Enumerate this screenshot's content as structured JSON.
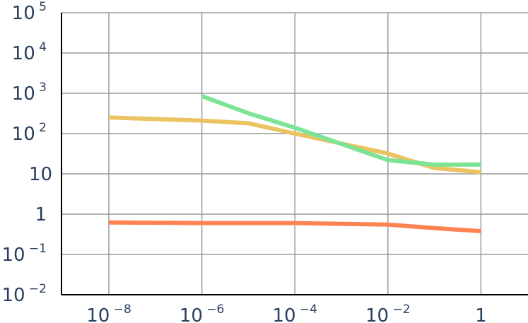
{
  "chart_data": {
    "type": "line",
    "title": "",
    "xlabel": "",
    "ylabel": "",
    "x_scale": "log",
    "y_scale": "log",
    "xlim": [
      3e-10,
      30
    ],
    "ylim": [
      0.01,
      100000
    ],
    "grid": true,
    "x_ticks": [
      {
        "value": 1e-08,
        "base": "10",
        "exp": "−8"
      },
      {
        "value": 1e-06,
        "base": "10",
        "exp": "−6"
      },
      {
        "value": 0.0001,
        "base": "10",
        "exp": "−4"
      },
      {
        "value": 0.01,
        "base": "10",
        "exp": "−2"
      },
      {
        "value": 1,
        "base": "1",
        "exp": ""
      }
    ],
    "y_ticks": [
      {
        "value": 0.01,
        "base": "10",
        "exp": "−2"
      },
      {
        "value": 0.1,
        "base": "10",
        "exp": "−1"
      },
      {
        "value": 1,
        "base": "1",
        "exp": ""
      },
      {
        "value": 10,
        "base": "10",
        "exp": ""
      },
      {
        "value": 100,
        "base": "10",
        "exp": "2"
      },
      {
        "value": 1000,
        "base": "10",
        "exp": "3"
      },
      {
        "value": 10000,
        "base": "10",
        "exp": "4"
      },
      {
        "value": 100000,
        "base": "10",
        "exp": "5"
      }
    ],
    "series": [
      {
        "color": "#ebc461",
        "points": [
          [
            1e-08,
            250
          ],
          [
            1e-06,
            210
          ],
          [
            1e-05,
            180
          ],
          [
            0.0001,
            100
          ],
          [
            0.01,
            32
          ],
          [
            0.1,
            14
          ],
          [
            1,
            11
          ]
        ]
      },
      {
        "color": "#7de495",
        "points": [
          [
            1e-06,
            850
          ],
          [
            1e-05,
            320
          ],
          [
            0.0001,
            140
          ],
          [
            0.01,
            22
          ],
          [
            0.1,
            17
          ],
          [
            1,
            17
          ]
        ]
      },
      {
        "color": "#ff8352",
        "points": [
          [
            1e-08,
            0.62
          ],
          [
            1e-06,
            0.6
          ],
          [
            0.0001,
            0.6
          ],
          [
            0.01,
            0.55
          ],
          [
            0.1,
            0.45
          ],
          [
            1,
            0.38
          ]
        ]
      }
    ]
  }
}
